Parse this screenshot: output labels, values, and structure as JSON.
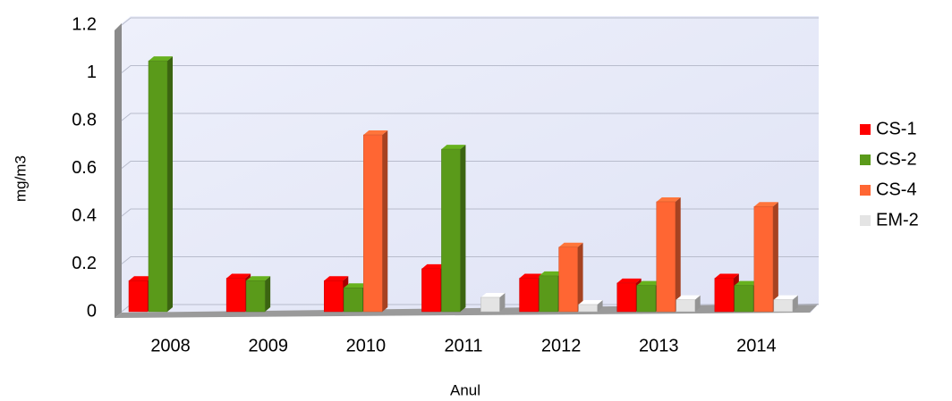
{
  "chart_data": {
    "type": "bar",
    "categories": [
      "2008",
      "2009",
      "2010",
      "2011",
      "2012",
      "2013",
      "2014"
    ],
    "series": [
      {
        "name": "CS-1",
        "color": "#ff0000",
        "values": [
          0.13,
          0.14,
          0.13,
          0.18,
          0.14,
          0.12,
          0.14
        ]
      },
      {
        "name": "CS-2",
        "color": "#5a9a1a",
        "values": [
          1.05,
          0.13,
          0.1,
          0.68,
          0.15,
          0.11,
          0.11
        ]
      },
      {
        "name": "CS-4",
        "color": "#ff6633",
        "values": [
          null,
          null,
          0.74,
          null,
          0.27,
          0.46,
          0.44
        ]
      },
      {
        "name": "EM-2",
        "color": "#e4e4e4",
        "values": [
          null,
          null,
          null,
          0.06,
          0.03,
          0.05,
          0.05
        ]
      }
    ],
    "ylim": [
      0,
      1.2
    ],
    "yticks": [
      0,
      0.2,
      0.4,
      0.6,
      0.8,
      1,
      1.2
    ],
    "ylabel": "mg/m3",
    "xlabel": "Anul",
    "grid": true,
    "legend": "right"
  }
}
